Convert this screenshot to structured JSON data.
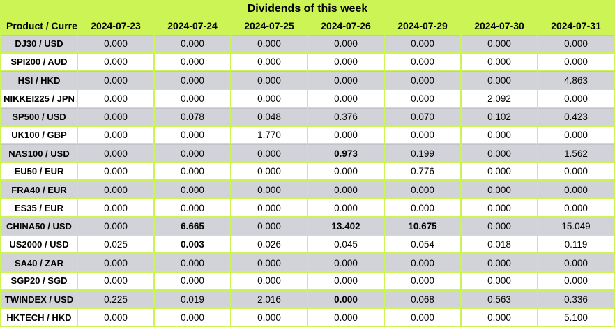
{
  "title": "Dividends of this week",
  "colors": {
    "page_background": "#cdf455",
    "row_gray": "#d2d2d9",
    "row_white": "#ffffff",
    "text": "#000000"
  },
  "chart_data": {
    "type": "table",
    "title": "Dividends of this week",
    "corner_header": "Product / Currency",
    "columns": [
      "2024-07-23",
      "2024-07-24",
      "2024-07-25",
      "2024-07-26",
      "2024-07-29",
      "2024-07-30",
      "2024-07-31"
    ],
    "rows": [
      {
        "product": "DJ30 / USD",
        "values": [
          "0.000",
          "0.000",
          "0.000",
          "0.000",
          "0.000",
          "0.000",
          "0.000"
        ],
        "bold": []
      },
      {
        "product": "SPI200 / AUD",
        "values": [
          "0.000",
          "0.000",
          "0.000",
          "0.000",
          "0.000",
          "0.000",
          "0.000"
        ],
        "bold": []
      },
      {
        "product": "HSI / HKD",
        "values": [
          "0.000",
          "0.000",
          "0.000",
          "0.000",
          "0.000",
          "0.000",
          "4.863"
        ],
        "bold": []
      },
      {
        "product": "NIKKEI225 / JPN",
        "values": [
          "0.000",
          "0.000",
          "0.000",
          "0.000",
          "0.000",
          "2.092",
          "0.000"
        ],
        "bold": []
      },
      {
        "product": "SP500 / USD",
        "values": [
          "0.000",
          "0.078",
          "0.048",
          "0.376",
          "0.070",
          "0.102",
          "0.423"
        ],
        "bold": []
      },
      {
        "product": "UK100 / GBP",
        "values": [
          "0.000",
          "0.000",
          "1.770",
          "0.000",
          "0.000",
          "0.000",
          "0.000"
        ],
        "bold": []
      },
      {
        "product": "NAS100 / USD",
        "values": [
          "0.000",
          "0.000",
          "0.000",
          "0.973",
          "0.199",
          "0.000",
          "1.562"
        ],
        "bold": [
          3
        ]
      },
      {
        "product": "EU50 / EUR",
        "values": [
          "0.000",
          "0.000",
          "0.000",
          "0.000",
          "0.776",
          "0.000",
          "0.000"
        ],
        "bold": []
      },
      {
        "product": "FRA40 / EUR",
        "values": [
          "0.000",
          "0.000",
          "0.000",
          "0.000",
          "0.000",
          "0.000",
          "0.000"
        ],
        "bold": []
      },
      {
        "product": "ES35 / EUR",
        "values": [
          "0.000",
          "0.000",
          "0.000",
          "0.000",
          "0.000",
          "0.000",
          "0.000"
        ],
        "bold": []
      },
      {
        "product": "CHINA50 / USD",
        "values": [
          "0.000",
          "6.665",
          "0.000",
          "13.402",
          "10.675",
          "0.000",
          "15.049"
        ],
        "bold": [
          1,
          3,
          4
        ]
      },
      {
        "product": "US2000 / USD",
        "values": [
          "0.025",
          "0.003",
          "0.026",
          "0.045",
          "0.054",
          "0.018",
          "0.119"
        ],
        "bold": [
          1
        ]
      },
      {
        "product": "SA40 / ZAR",
        "values": [
          "0.000",
          "0.000",
          "0.000",
          "0.000",
          "0.000",
          "0.000",
          "0.000"
        ],
        "bold": []
      },
      {
        "product": "SGP20 / SGD",
        "values": [
          "0.000",
          "0.000",
          "0.000",
          "0.000",
          "0.000",
          "0.000",
          "0.000"
        ],
        "bold": []
      },
      {
        "product": "TWINDEX / USD",
        "values": [
          "0.225",
          "0.019",
          "2.016",
          "0.000",
          "0.068",
          "0.563",
          "0.336"
        ],
        "bold": [
          3
        ]
      },
      {
        "product": "HKTECH / HKD",
        "values": [
          "0.000",
          "0.000",
          "0.000",
          "0.000",
          "0.000",
          "0.000",
          "5.100"
        ],
        "bold": []
      }
    ]
  }
}
